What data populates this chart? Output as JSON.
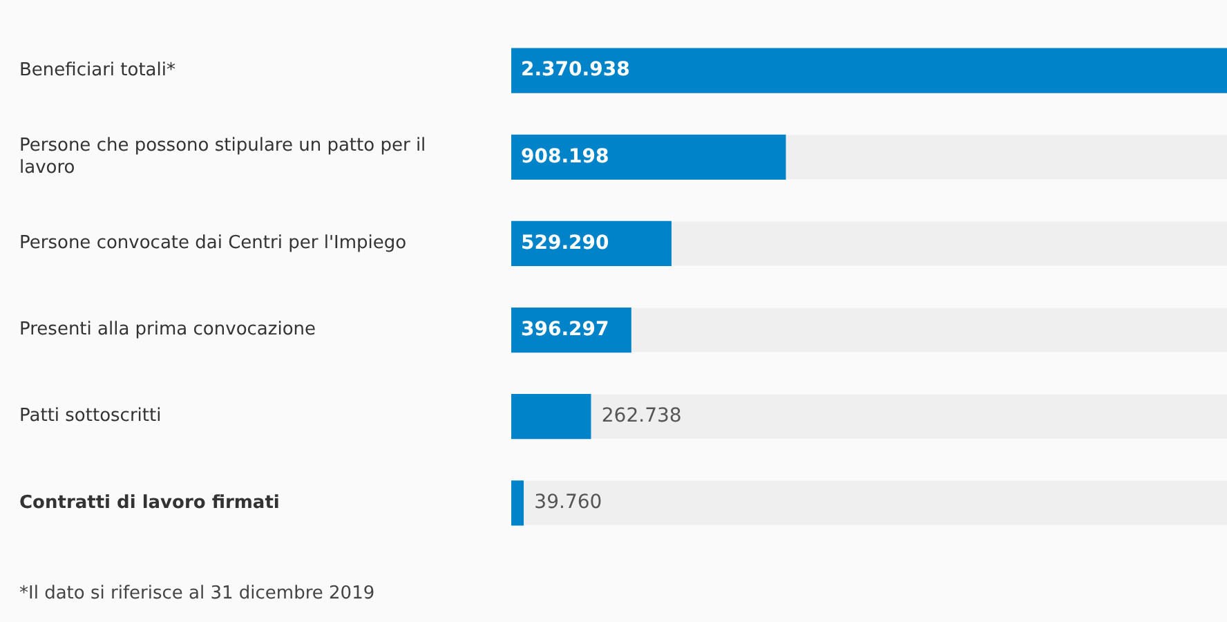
{
  "chart_data": {
    "type": "bar",
    "orientation": "horizontal",
    "categories": [
      "Beneficiari totali*",
      "Persone che possono stipulare un patto per il lavoro",
      "Persone convocate dai Centri per l'Impiego",
      "Presenti alla prima convocazione",
      "Patti sottoscritti",
      "Contratti di lavoro firmati"
    ],
    "values": [
      2370938,
      908198,
      529290,
      396297,
      262738,
      39760
    ],
    "value_labels": [
      "2.370.938",
      "908.198",
      "529.290",
      "396.297",
      "262.738",
      "39.760"
    ],
    "color": "#0083c9",
    "annotations": [
      "*Il dato si riferisce al 31 dicembre 2019"
    ]
  }
}
